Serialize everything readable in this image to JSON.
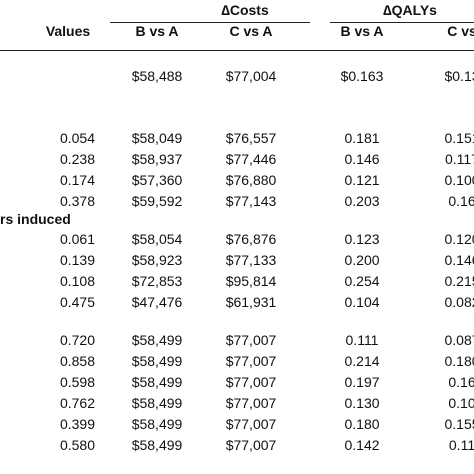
{
  "header": {
    "groups": [
      "∆Costs",
      "∆QALYs"
    ],
    "columns": [
      "Values",
      "B vs A",
      "C vs A",
      "B vs A",
      "C vs "
    ]
  },
  "table": {
    "base": [
      "$58,488",
      "$77,004",
      "$0.163",
      "$0.13"
    ],
    "sections": [
      {
        "rows": [
          [
            "0.054",
            "$58,049",
            "$76,557",
            "0.181",
            "0.151"
          ],
          [
            "0.238",
            "$58,937",
            "$77,446",
            "0.146",
            "0.117"
          ],
          [
            "0.174",
            "$57,360",
            "$76,880",
            "0.121",
            "0.100"
          ],
          [
            "0.378",
            "$59,592",
            "$77,143",
            "0.203",
            "0.16"
          ]
        ]
      },
      {
        "label": "rs induced",
        "rows": [
          [
            "0.061",
            "$58,054",
            "$76,876",
            "0.123",
            "0.120"
          ],
          [
            "0.139",
            "$58,923",
            "$77,133",
            "0.200",
            "0.146"
          ],
          [
            "0.108",
            "$72,853",
            "$95,814",
            "0.254",
            "0.215"
          ],
          [
            "0.475",
            "$47,476",
            "$61,931",
            "0.104",
            "0.082"
          ]
        ]
      },
      {
        "rows": [
          [
            "0.720",
            "$58,499",
            "$77,007",
            "0.111",
            "0.087"
          ],
          [
            "0.858",
            "$58,499",
            "$77,007",
            "0.214",
            "0.180"
          ],
          [
            "0.598",
            "$58,499",
            "$77,007",
            "0.197",
            "0.16"
          ],
          [
            "0.762",
            "$58,499",
            "$77,007",
            "0.130",
            "0.10"
          ],
          [
            "0.399",
            "$58,499",
            "$77,007",
            "0.180",
            "0.155"
          ],
          [
            "0.580",
            "$58,499",
            "$77,007",
            "0.142",
            "0.11"
          ]
        ]
      }
    ]
  }
}
